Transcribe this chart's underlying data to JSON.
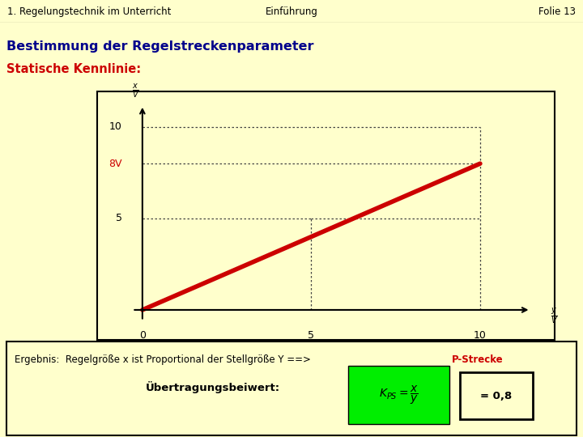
{
  "bg_color": "#FFFFCC",
  "title_text": "1. Regelungstechnik im Unterricht",
  "center_text": "Einführung",
  "folie_text": "Folie 13",
  "heading": "Bestimmung der Regelstreckenparameter",
  "subheading": "Statische Kennlinie:",
  "plot_bg": "#FFFFCC",
  "line_color": "#CC0000",
  "dotted_color": "#555555",
  "x_data": [
    0,
    10
  ],
  "y_data": [
    0,
    8
  ],
  "ergebnis_text1": "Ergebnis:  Regelgröße x ist Proportional der Stellgröße Y ==> ",
  "ergebnis_bold": "P-Strecke",
  "ueber_text": "Übertragungsbeiwert:",
  "formula_bg": "#00EE00",
  "result_text": "= 0,8",
  "result_bg": "#FFFFCC"
}
